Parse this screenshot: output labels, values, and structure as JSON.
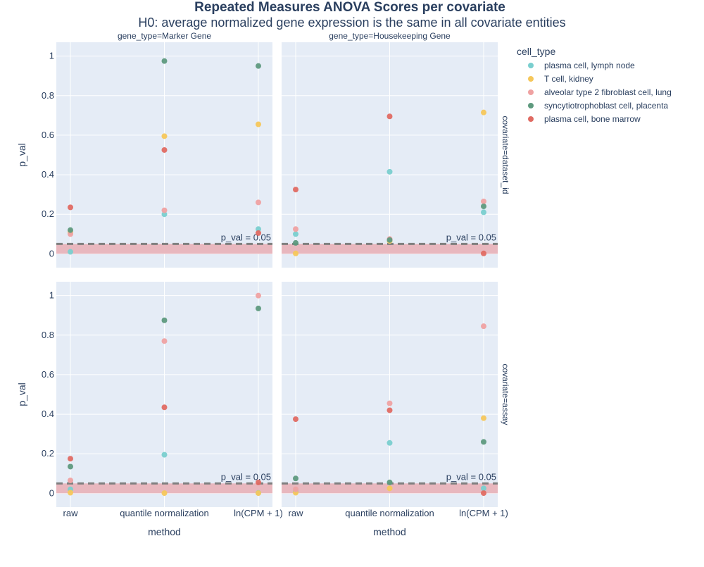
{
  "chart_data": {
    "type": "scatter",
    "title": "Repeated Measures ANOVA Scores per covariate",
    "subtitle": "H0: average normalized gene expression is the same in all covariate entities",
    "xlabel": "method",
    "ylabel": "p_val",
    "x_categories": [
      "raw",
      "quantile normalization",
      "ln(CPM + 1)"
    ],
    "ylim": [
      -0.07,
      1.07
    ],
    "y_ticks": [
      0,
      0.2,
      0.4,
      0.6,
      0.8,
      1
    ],
    "y_tick_labels": [
      "0",
      "0.2",
      "0.4",
      "0.6",
      "0.8",
      "1"
    ],
    "grid": true,
    "legend_position": "top-right",
    "legend": {
      "title": "cell_type",
      "items": [
        {
          "name": "plasma cell, lymph node",
          "color": "#7ACFCF"
        },
        {
          "name": "T cell, kidney",
          "color": "#F5C75B"
        },
        {
          "name": "alveolar type 2 fibroblast cell, lung",
          "color": "#EFA2A2"
        },
        {
          "name": "syncytiotrophoblast cell, placenta",
          "color": "#5E9A7E"
        },
        {
          "name": "plasma cell, bone marrow",
          "color": "#E06B63"
        }
      ]
    },
    "threshold": {
      "value": 0.05,
      "label": "p_val = 0.05",
      "band": [
        0,
        0.05
      ]
    },
    "columns": [
      "gene_type=Marker Gene",
      "gene_type=Housekeeping Gene"
    ],
    "rows": [
      "covariate=dataset_id",
      "covariate=assay"
    ],
    "panels": [
      {
        "row": 0,
        "col": 0,
        "series": [
          {
            "name": "plasma cell, lymph node",
            "values": [
              0.01,
              0.2,
              0.125
            ]
          },
          {
            "name": "T cell, kidney",
            "values": [
              0.11,
              0.595,
              0.655
            ]
          },
          {
            "name": "alveolar type 2 fibroblast cell, lung",
            "values": [
              0.1,
              0.22,
              0.26
            ]
          },
          {
            "name": "syncytiotrophoblast cell, placenta",
            "values": [
              0.12,
              0.975,
              0.95
            ]
          },
          {
            "name": "plasma cell, bone marrow",
            "values": [
              0.235,
              0.525,
              0.105
            ]
          }
        ]
      },
      {
        "row": 0,
        "col": 1,
        "series": [
          {
            "name": "plasma cell, lymph node",
            "values": [
              0.1,
              0.415,
              0.21
            ]
          },
          {
            "name": "T cell, kidney",
            "values": [
              0.002,
              0.065,
              0.715
            ]
          },
          {
            "name": "alveolar type 2 fibroblast cell, lung",
            "values": [
              0.125,
              0.075,
              0.265
            ]
          },
          {
            "name": "syncytiotrophoblast cell, placenta",
            "values": [
              0.055,
              0.07,
              0.24
            ]
          },
          {
            "name": "plasma cell, bone marrow",
            "values": [
              0.325,
              0.695,
              0.002
            ]
          }
        ]
      },
      {
        "row": 1,
        "col": 0,
        "series": [
          {
            "name": "plasma cell, lymph node",
            "values": [
              0.02,
              0.195,
              0.002
            ]
          },
          {
            "name": "T cell, kidney",
            "values": [
              0.003,
              0.001,
              0.001
            ]
          },
          {
            "name": "alveolar type 2 fibroblast cell, lung",
            "values": [
              0.065,
              0.77,
              1.0
            ]
          },
          {
            "name": "syncytiotrophoblast cell, placenta",
            "values": [
              0.135,
              0.875,
              0.935
            ]
          },
          {
            "name": "plasma cell, bone marrow",
            "values": [
              0.175,
              0.435,
              0.055
            ]
          }
        ]
      },
      {
        "row": 1,
        "col": 1,
        "series": [
          {
            "name": "plasma cell, lymph node",
            "values": [
              0.01,
              0.255,
              0.025
            ]
          },
          {
            "name": "T cell, kidney",
            "values": [
              0.003,
              0.025,
              0.38
            ]
          },
          {
            "name": "alveolar type 2 fibroblast cell, lung",
            "values": [
              0.02,
              0.455,
              0.845
            ]
          },
          {
            "name": "syncytiotrophoblast cell, placenta",
            "values": [
              0.075,
              0.055,
              0.26
            ]
          },
          {
            "name": "plasma cell, bone marrow",
            "values": [
              0.375,
              0.42,
              0.001
            ]
          }
        ]
      }
    ]
  }
}
